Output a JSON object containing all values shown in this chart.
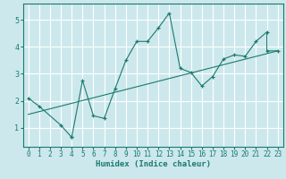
{
  "title": "",
  "xlabel": "Humidex (Indice chaleur)",
  "bg_color": "#cce8ec",
  "line_color": "#1a7a6e",
  "grid_color": "#ffffff",
  "xlim": [
    -0.5,
    23.5
  ],
  "ylim": [
    0.3,
    5.6
  ],
  "xticks": [
    0,
    1,
    2,
    3,
    4,
    5,
    6,
    7,
    8,
    9,
    10,
    11,
    12,
    13,
    14,
    15,
    16,
    17,
    18,
    19,
    20,
    21,
    22,
    23
  ],
  "yticks": [
    1,
    2,
    3,
    4,
    5
  ],
  "scatter_x": [
    0,
    1,
    3,
    4,
    4,
    5,
    6,
    7,
    8,
    9,
    10,
    11,
    12,
    13,
    14,
    15,
    16,
    17,
    18,
    19,
    20,
    21,
    22,
    22,
    23
  ],
  "scatter_y": [
    2.1,
    1.8,
    1.1,
    0.65,
    0.65,
    2.75,
    1.45,
    1.35,
    2.45,
    3.5,
    4.2,
    4.2,
    4.7,
    5.25,
    3.2,
    3.05,
    2.55,
    2.9,
    3.55,
    3.7,
    3.65,
    4.2,
    4.55,
    3.85,
    3.85
  ],
  "trend_x": [
    0,
    23
  ],
  "trend_y": [
    1.5,
    3.85
  ]
}
